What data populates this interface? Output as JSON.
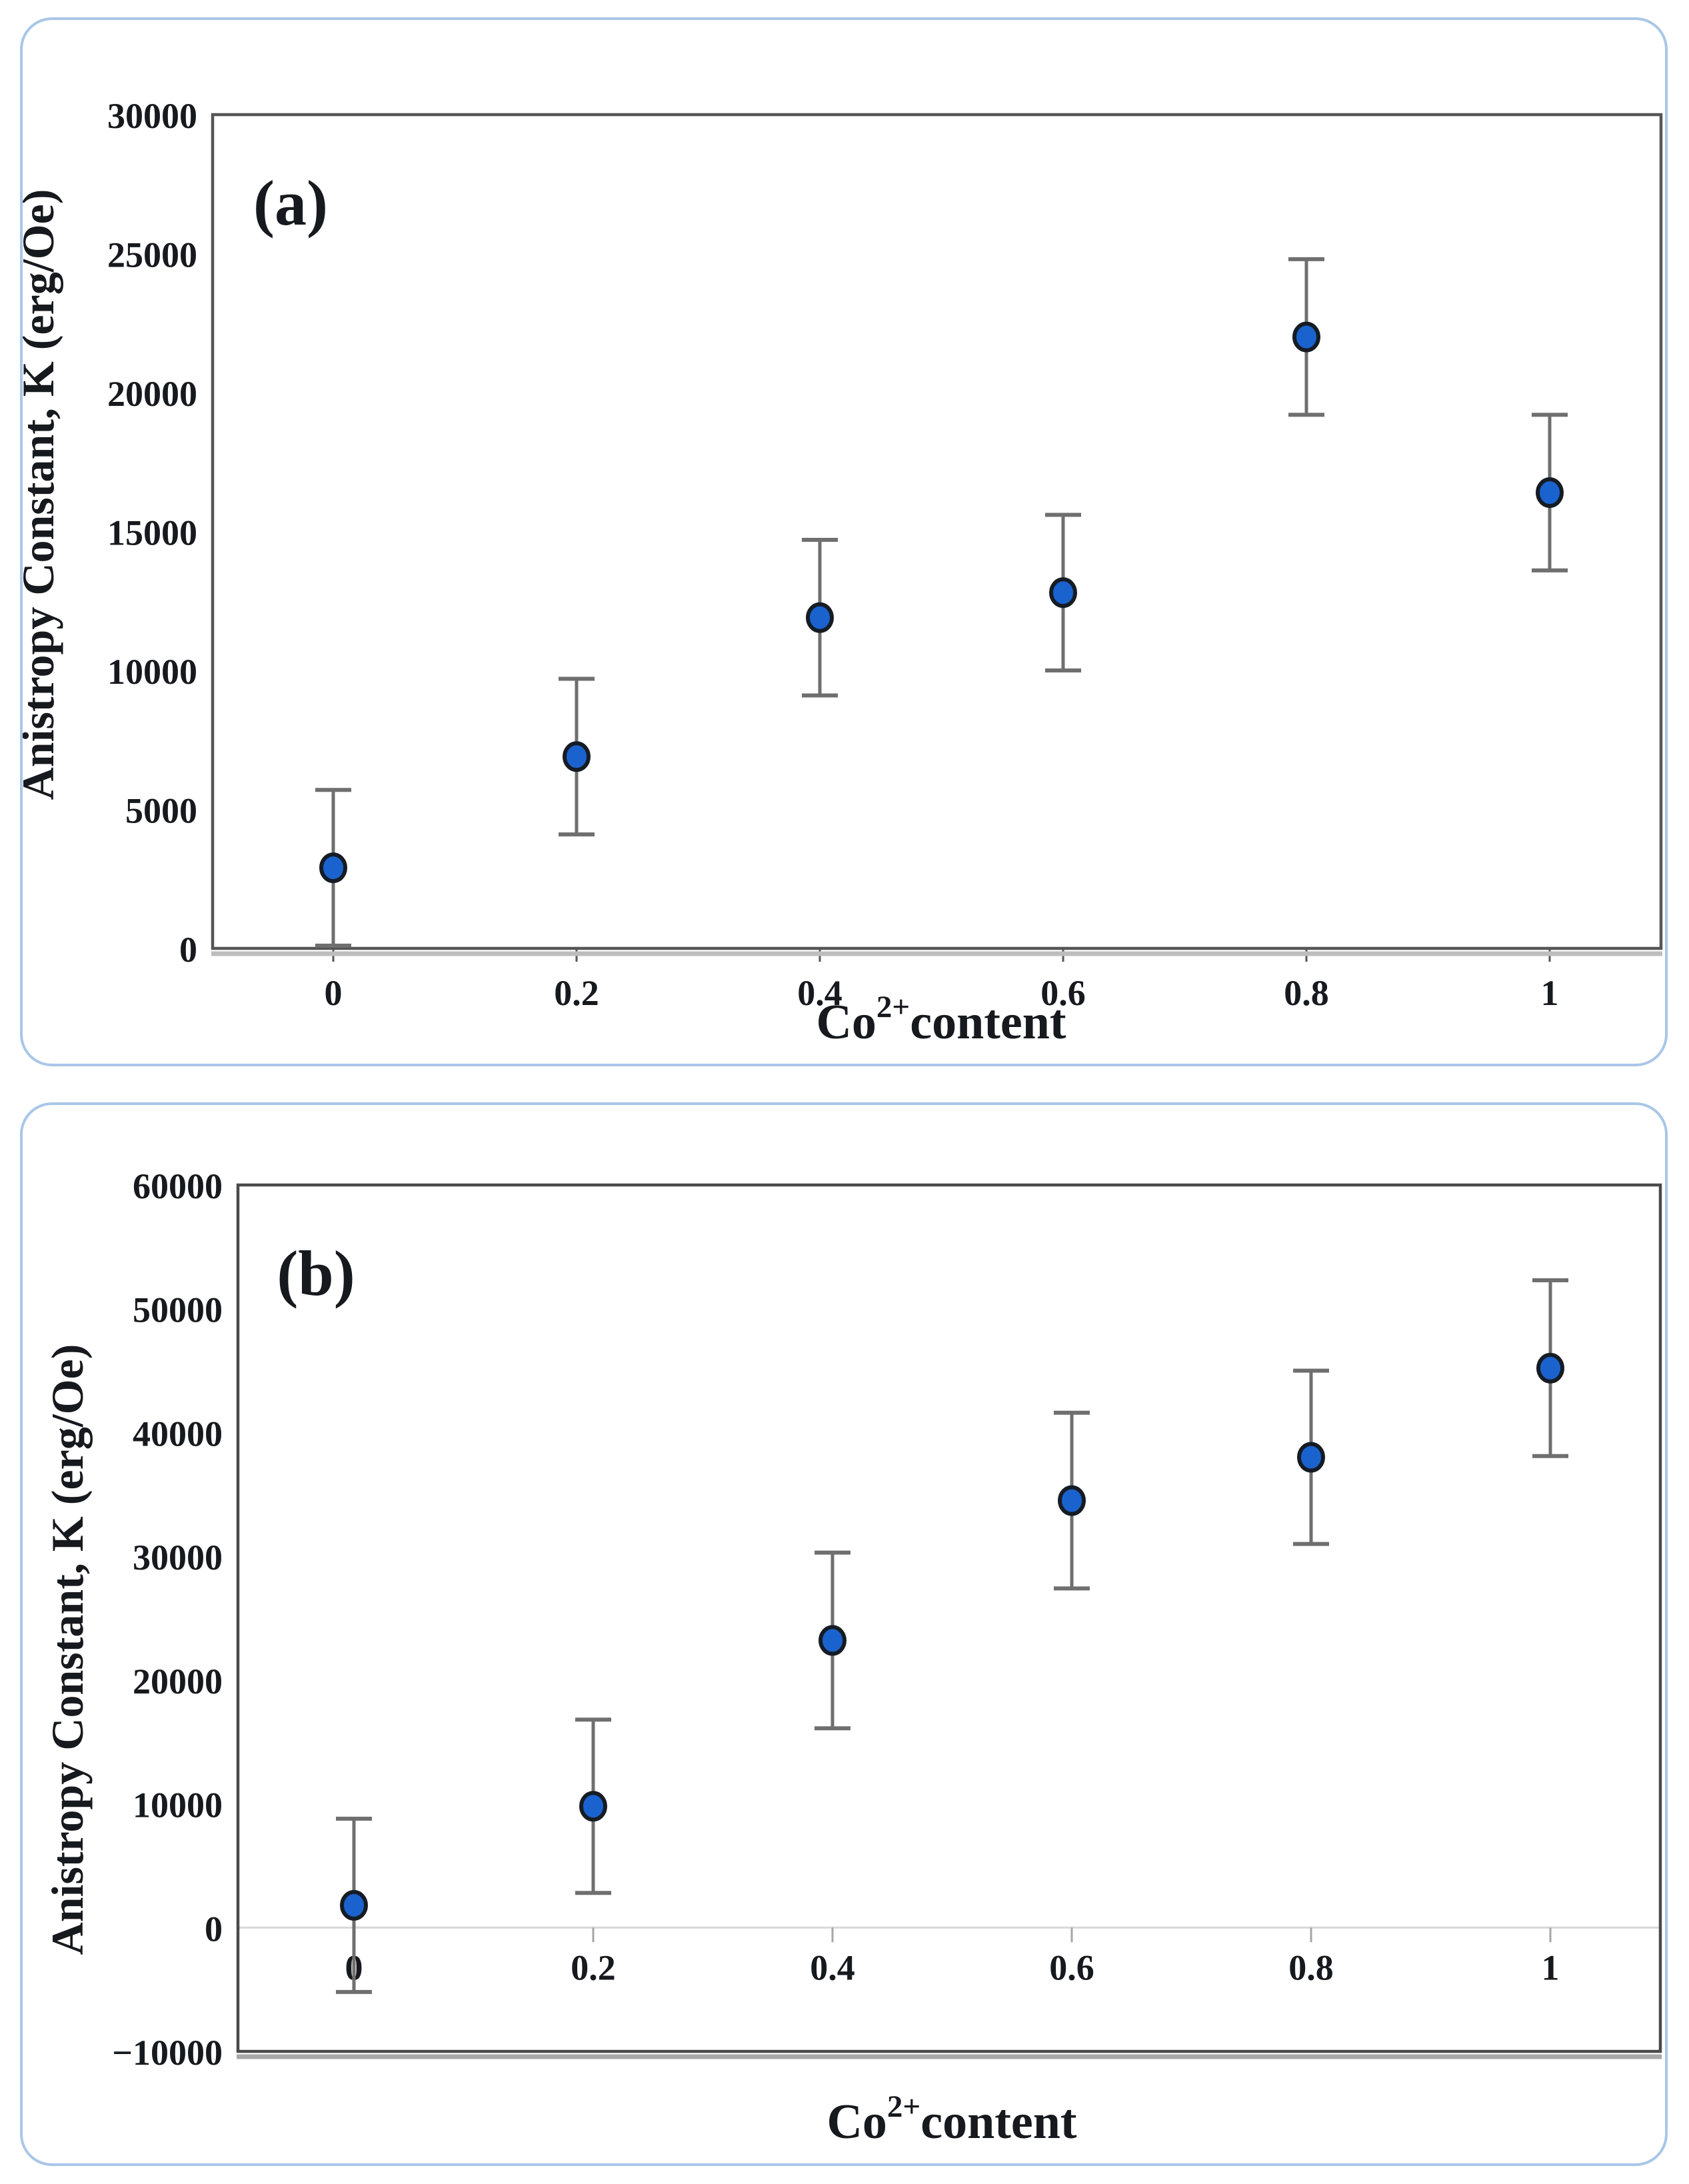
{
  "figure": {
    "background": "#ffffff",
    "card_border_color": "#a9c6e8",
    "panel_count": 2
  },
  "chart_data": [
    {
      "type": "scatter",
      "panel_tag": "(a)",
      "xlabel_parts": {
        "base": "Co",
        "sup": "2+",
        "rest": "content"
      },
      "xlabel": "Co2+content",
      "ylabel": "Anistropy Constant, K (erg/Oe)",
      "x": [
        0,
        0.2,
        0.4,
        0.6,
        0.8,
        1
      ],
      "y": [
        2900,
        6900,
        11900,
        12800,
        22000,
        16400
      ],
      "y_err": [
        2800,
        2800,
        2800,
        2800,
        2800,
        2800
      ],
      "xlim": [
        -0.13,
        1.09
      ],
      "ylim": [
        0,
        30000
      ],
      "grid": false,
      "legend": null,
      "y_ticks": [
        {
          "label": "30000",
          "value": 30000
        },
        {
          "label": "25000",
          "value": 25000
        },
        {
          "label": "20000",
          "value": 20000
        },
        {
          "label": "15000",
          "value": 15000
        },
        {
          "label": "10000",
          "value": 10000
        },
        {
          "label": "5000",
          "value": 5000
        },
        {
          "label": "0",
          "value": 0
        }
      ],
      "x_ticks": [
        {
          "label": "0",
          "value": 0
        },
        {
          "label": "0.2",
          "value": 0.2
        },
        {
          "label": "0.4",
          "value": 0.4
        },
        {
          "label": "0.6",
          "value": 0.6
        },
        {
          "label": "0.8",
          "value": 0.8
        },
        {
          "label": "1",
          "value": 1
        }
      ],
      "style": {
        "marker_fill": "#1a63cf",
        "marker_stroke": "#161c24",
        "errorbar_color": "#6f6f6f",
        "border_color": "#555555",
        "axis_shadow_color": "#bdbdbd",
        "zero_line": false
      }
    },
    {
      "type": "scatter",
      "panel_tag": "(b)",
      "xlabel_parts": {
        "base": "Co",
        "sup": "2+",
        "rest": "content"
      },
      "xlabel": "Co2+content",
      "ylabel": "Anistropy Constant, K (erg/Oe)",
      "x": [
        0,
        0.2,
        0.4,
        0.6,
        0.8,
        1
      ],
      "y": [
        1800,
        9800,
        23200,
        34500,
        38000,
        45200
      ],
      "y_err": [
        7000,
        7000,
        7100,
        7100,
        7000,
        7100
      ],
      "xlim": [
        -0.13,
        1.09
      ],
      "ylim": [
        -10000,
        60000
      ],
      "grid": false,
      "legend": null,
      "y_ticks": [
        {
          "label": "60000",
          "value": 60000
        },
        {
          "label": "50000",
          "value": 50000
        },
        {
          "label": "40000",
          "value": 40000
        },
        {
          "label": "30000",
          "value": 30000
        },
        {
          "label": "20000",
          "value": 20000
        },
        {
          "label": "10000",
          "value": 10000
        },
        {
          "label": "0",
          "value": 0
        },
        {
          "label": "−10000",
          "value": -10000
        }
      ],
      "x_ticks": [
        {
          "label": "0",
          "value": 0
        },
        {
          "label": "0.2",
          "value": 0.2
        },
        {
          "label": "0.4",
          "value": 0.4
        },
        {
          "label": "0.6",
          "value": 0.6
        },
        {
          "label": "0.8",
          "value": 0.8
        },
        {
          "label": "1",
          "value": 1
        }
      ],
      "style": {
        "marker_fill": "#1a63cf",
        "marker_stroke": "#161c24",
        "errorbar_color": "#6f6f6f",
        "border_color": "#4a4a4a",
        "axis_shadow_color": "#a8a8a8",
        "zero_line": true,
        "zero_line_color": "#d8d8d8",
        "zero_tick_color": "#a6a6a6"
      }
    }
  ]
}
